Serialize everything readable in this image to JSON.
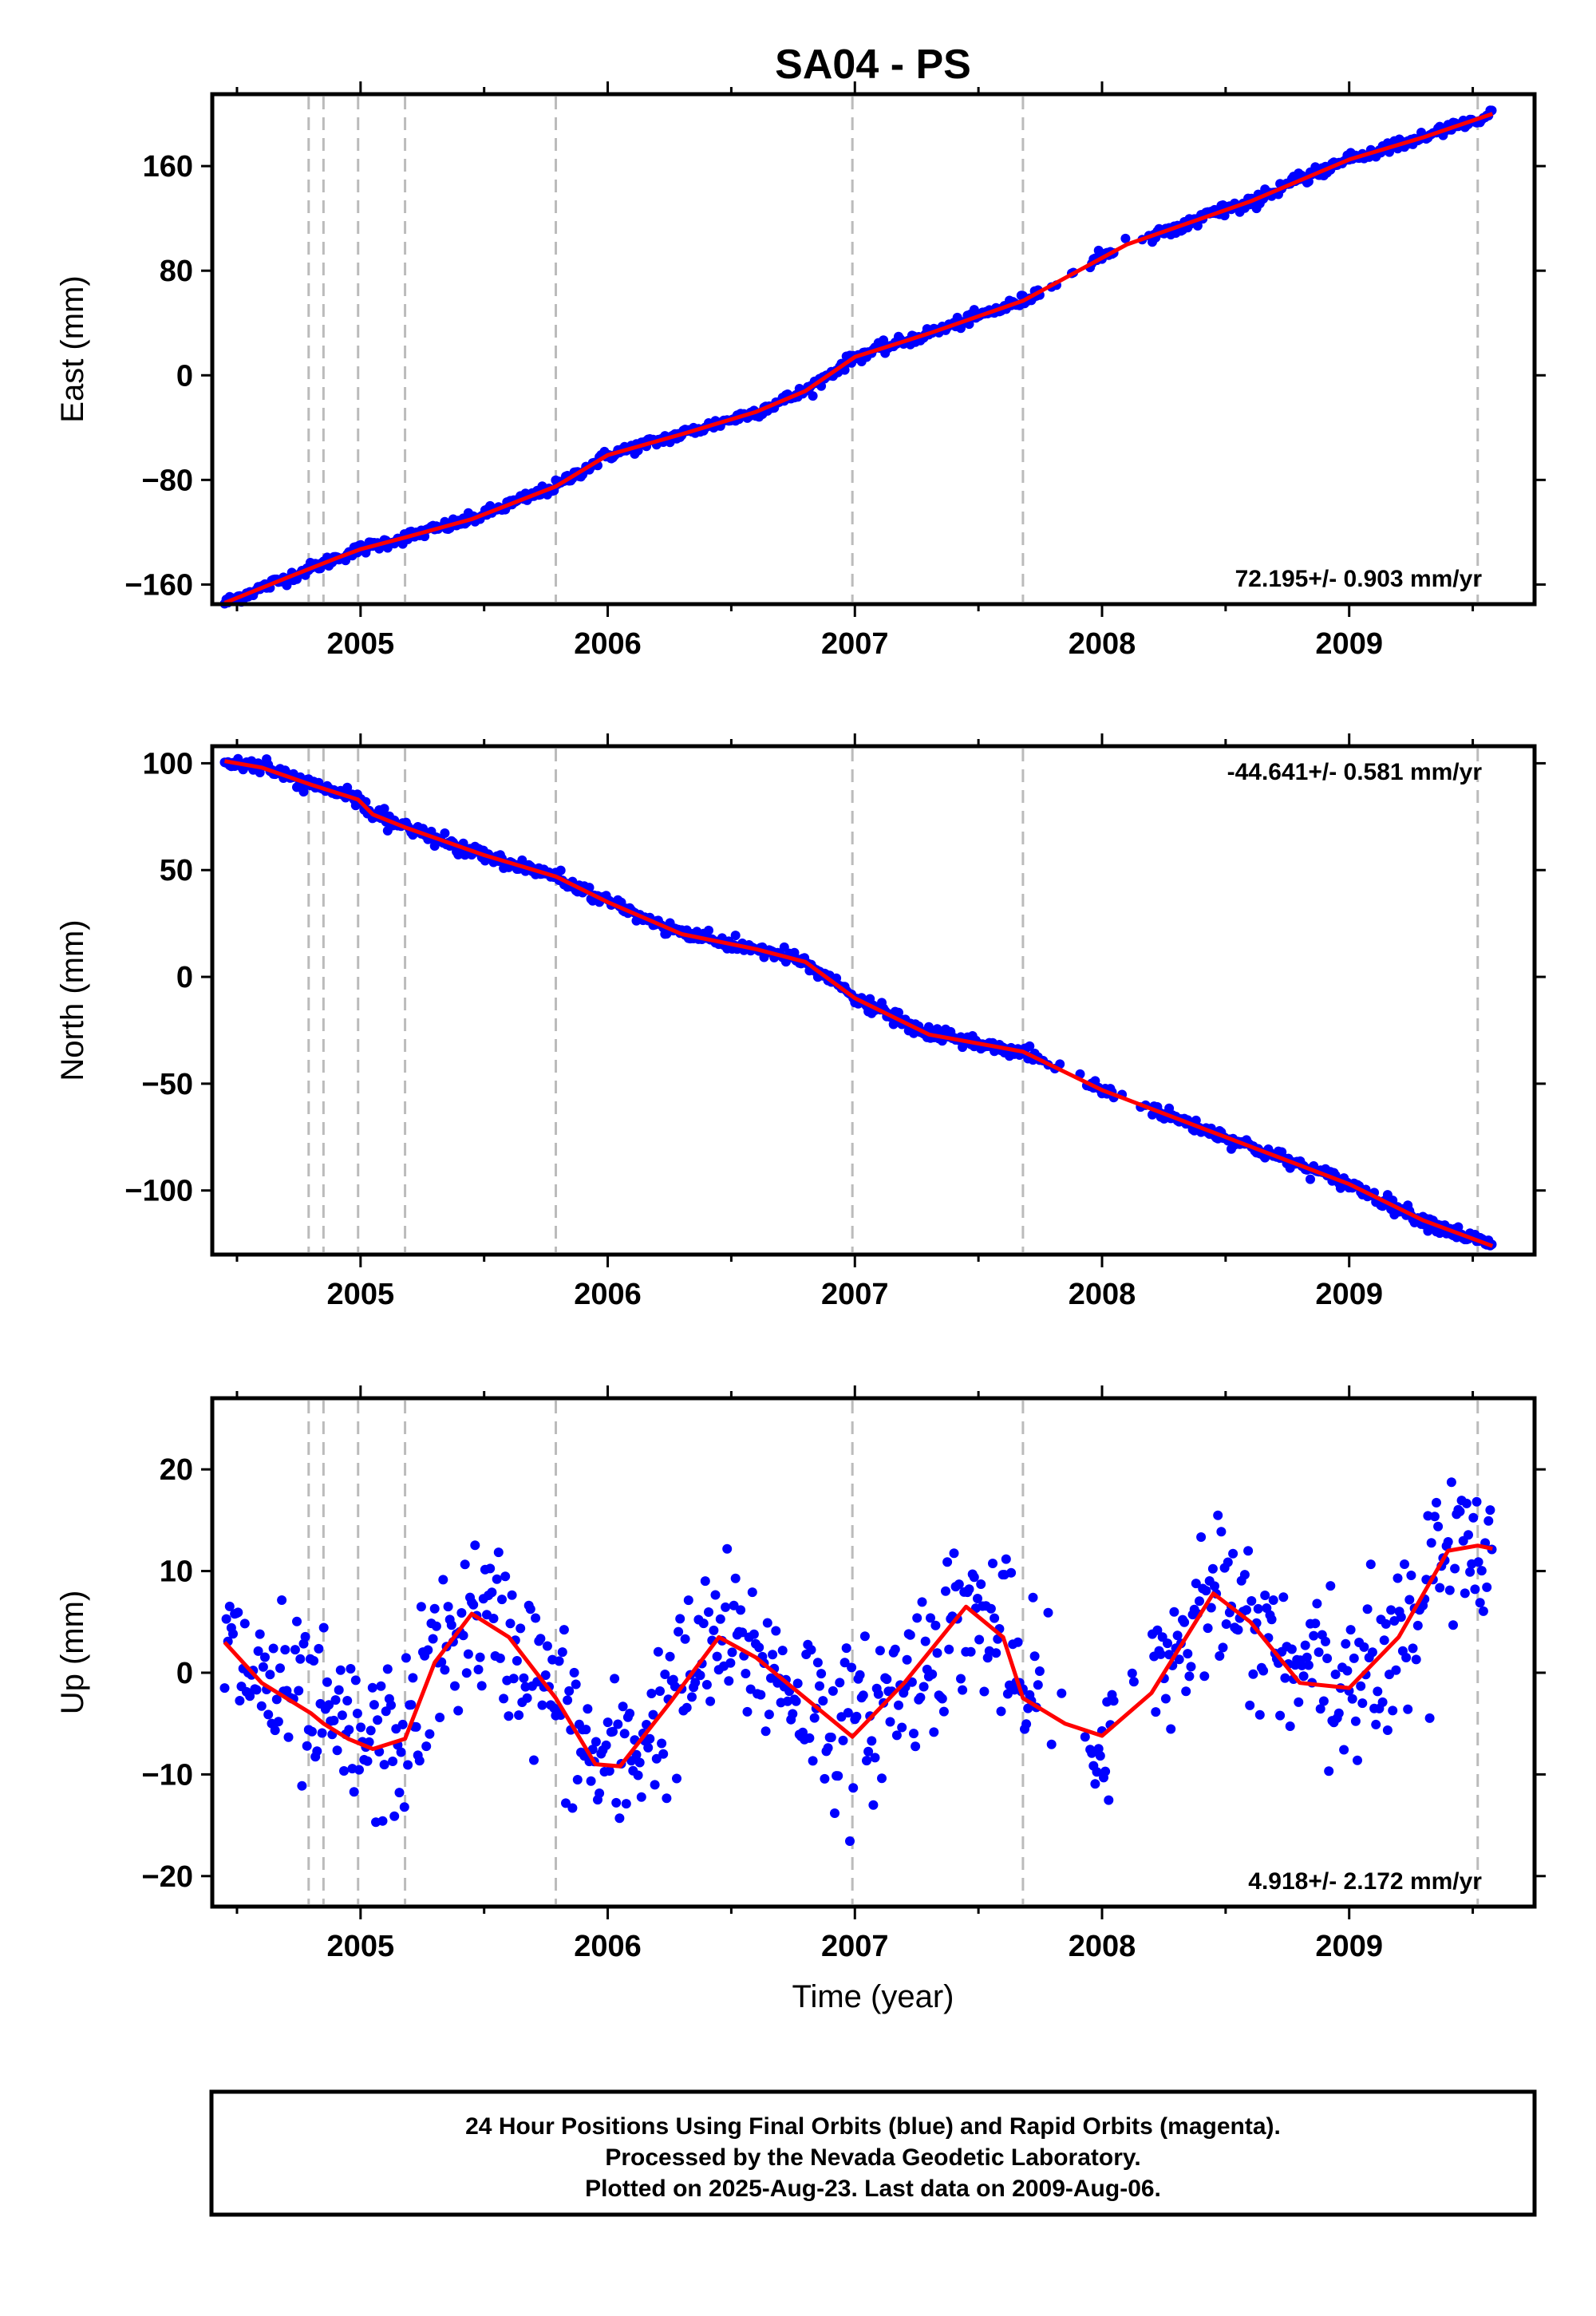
{
  "title": "SA04 - PS",
  "colors": {
    "points": "#0000ff",
    "fit": "#ff0000",
    "offsets": "#bbbbbb",
    "frame": "#000000"
  },
  "xlabel": "Time (year)",
  "footer": {
    "line1": "24 Hour Positions Using Final Orbits (blue) and Rapid Orbits (magenta).",
    "line2": "Processed by the Nevada Geodetic Laboratory.",
    "line3": "Plotted on 2025-Aug-23. Last data on 2009-Aug-06."
  },
  "chart_data": [
    {
      "type": "scatter",
      "ylabel": "East (mm)",
      "rate": "72.195+/- 0.903 mm/yr",
      "rate_position": "bottom-right",
      "xlim": [
        2004.4,
        2009.75
      ],
      "ylim": [
        -175,
        215
      ],
      "xticks": [
        2005,
        2006,
        2007,
        2008,
        2009
      ],
      "yticks": [
        -160,
        -80,
        0,
        80,
        160
      ],
      "offset_lines": [
        2004.79,
        2004.85,
        2004.99,
        2005.18,
        2005.79,
        2006.99,
        2007.68,
        2009.52
      ],
      "fit": {
        "x": [
          2004.45,
          2004.7,
          2004.9,
          2005.0,
          2005.18,
          2005.45,
          2005.79,
          2006.0,
          2006.3,
          2006.6,
          2006.8,
          2007.0,
          2007.3,
          2007.68,
          2008.1,
          2008.6,
          2009.0,
          2009.3,
          2009.58
        ],
        "y": [
          -174,
          -155,
          -140,
          -133,
          -124,
          -110,
          -85,
          -61,
          -45,
          -28,
          -12,
          14,
          32,
          57,
          100,
          133,
          165,
          182,
          200
        ]
      }
    },
    {
      "type": "scatter",
      "ylabel": "North (mm)",
      "rate": "-44.641+/- 0.581 mm/yr",
      "rate_position": "top-right",
      "xlim": [
        2004.4,
        2009.75
      ],
      "ylim": [
        -130,
        108
      ],
      "xticks": [
        2005,
        2006,
        2007,
        2008,
        2009
      ],
      "yticks": [
        -100,
        -50,
        0,
        50,
        100
      ],
      "offset_lines": [
        2004.79,
        2004.85,
        2004.99,
        2005.18,
        2005.79,
        2006.99,
        2007.68,
        2009.52
      ],
      "fit": {
        "x": [
          2004.45,
          2004.6,
          2004.8,
          2004.99,
          2005.05,
          2005.18,
          2005.5,
          2005.79,
          2006.0,
          2006.3,
          2006.6,
          2006.8,
          2007.0,
          2007.3,
          2007.68,
          2008.0,
          2008.5,
          2009.0,
          2009.3,
          2009.58
        ],
        "y": [
          101,
          98,
          90,
          83,
          76,
          70,
          57,
          47,
          35,
          20,
          13,
          7,
          -10,
          -27,
          -35,
          -53,
          -75,
          -97,
          -114,
          -126
        ]
      }
    },
    {
      "type": "scatter",
      "ylabel": "Up (mm)",
      "rate": "4.918+/- 2.172 mm/yr",
      "rate_position": "bottom-right",
      "xlim": [
        2004.4,
        2009.75
      ],
      "ylim": [
        -23,
        27
      ],
      "xticks": [
        2005,
        2006,
        2007,
        2008,
        2009
      ],
      "yticks": [
        -20,
        -10,
        0,
        10,
        20
      ],
      "offset_lines": [
        2004.79,
        2004.85,
        2004.99,
        2005.18,
        2005.79,
        2006.99,
        2007.68,
        2009.52
      ],
      "fit": {
        "x": [
          2004.45,
          2004.6,
          2004.8,
          2004.85,
          2004.95,
          2005.05,
          2005.18,
          2005.3,
          2005.45,
          2005.6,
          2005.79,
          2005.95,
          2006.05,
          2006.25,
          2006.45,
          2006.6,
          2006.8,
          2006.99,
          2007.2,
          2007.45,
          2007.6,
          2007.68,
          2007.85,
          2008.0,
          2008.2,
          2008.45,
          2008.6,
          2008.8,
          2009.0,
          2009.2,
          2009.4,
          2009.52,
          2009.58
        ],
        "y": [
          3,
          -1,
          -4,
          -5,
          -6.5,
          -7.5,
          -6.5,
          1,
          5.8,
          3.5,
          -2.5,
          -9,
          -9.2,
          -3,
          3.5,
          1.5,
          -2.5,
          -6.3,
          -1,
          6.5,
          3.5,
          -2.5,
          -5,
          -6.2,
          -2,
          7.8,
          5,
          -1,
          -1.5,
          3.5,
          12,
          12.5,
          12.2
        ]
      }
    }
  ]
}
